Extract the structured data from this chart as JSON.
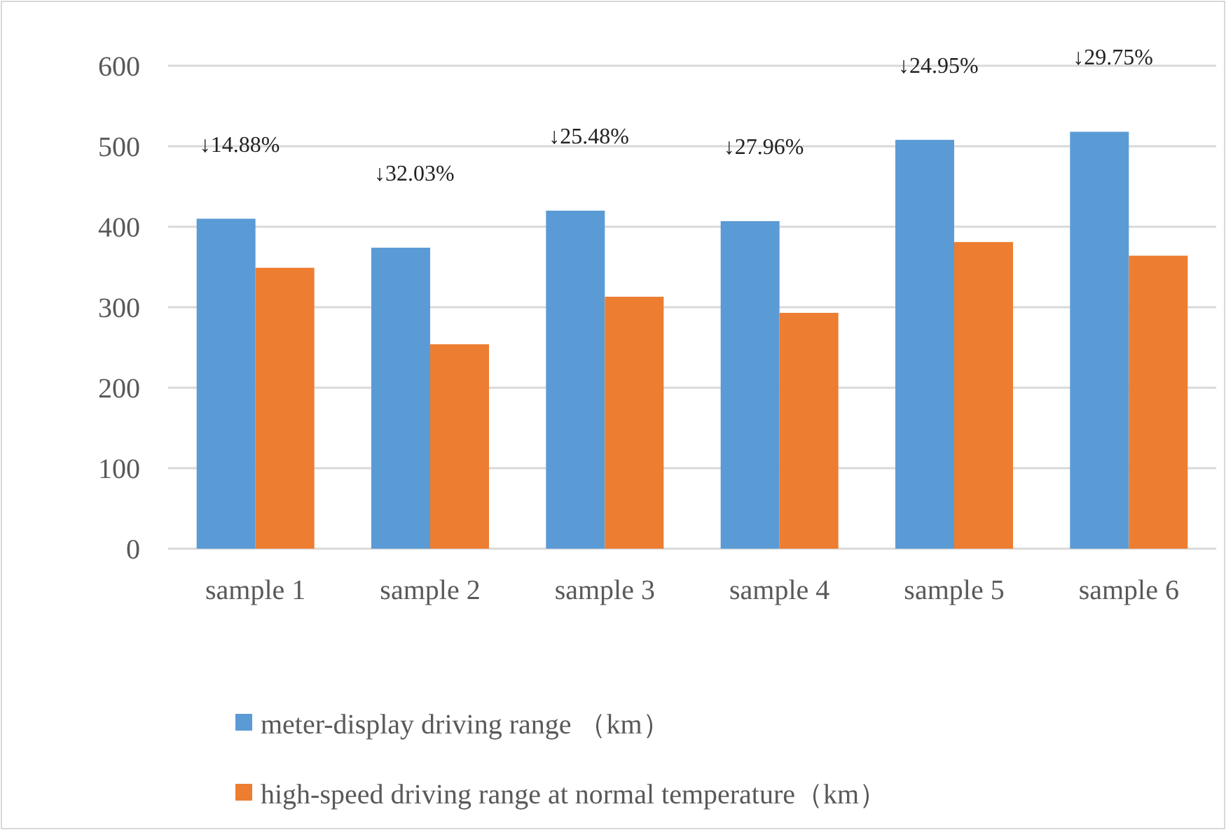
{
  "chart_data": {
    "type": "bar",
    "categories": [
      "sample 1",
      "sample 2",
      "sample 3",
      "sample 4",
      "sample 5",
      "sample 6"
    ],
    "series": [
      {
        "name": "meter-display driving range （km）",
        "color": "#5b9bd5",
        "values": [
          410,
          374,
          420,
          407,
          508,
          518
        ]
      },
      {
        "name": "high-speed driving range at normal temperature（km）",
        "color": "#ed7d31",
        "values": [
          349,
          254,
          313,
          293,
          381,
          364
        ]
      }
    ],
    "ylim": [
      0,
      600
    ],
    "yticks": [
      0,
      100,
      200,
      300,
      400,
      500,
      600
    ],
    "grid": "y",
    "legend": "bottom",
    "annotations": [
      "↓14.88%",
      "↓32.03%",
      "↓25.48%",
      "↓27.96%",
      "↓24.95%",
      "↓29.75%"
    ]
  }
}
